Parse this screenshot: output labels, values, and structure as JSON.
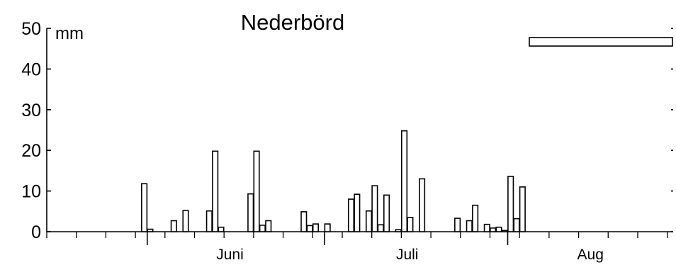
{
  "chart_data": {
    "type": "bar",
    "title": "Nederbörd",
    "ylabel": "mm",
    "ylim": [
      0,
      50
    ],
    "yticks": [
      0,
      10,
      20,
      30,
      40,
      50
    ],
    "y_tick_labels": [
      "0",
      "10",
      "20",
      "30",
      "40",
      "50"
    ],
    "xlim": [
      "2000-05-15",
      "2000-08-29"
    ],
    "month_labels": [
      {
        "label": "Juni",
        "date": "2000-06-15"
      },
      {
        "label": "Juli",
        "date": "2000-07-15"
      },
      {
        "label": "Aug",
        "date": "2000-08-15"
      }
    ],
    "month_boundaries": [
      "2000-06-01",
      "2000-07-01",
      "2000-08-01"
    ],
    "grid": false,
    "legend": {
      "position": "top-right",
      "entries": [
        {
          "label": ""
        }
      ]
    },
    "bars": [
      {
        "date": "2000-05-31",
        "value": 11.8
      },
      {
        "date": "2000-06-01",
        "value": 0.6
      },
      {
        "date": "2000-06-05",
        "value": 2.7
      },
      {
        "date": "2000-06-07",
        "value": 5.2
      },
      {
        "date": "2000-06-11",
        "value": 5.1
      },
      {
        "date": "2000-06-12",
        "value": 19.8
      },
      {
        "date": "2000-06-13",
        "value": 1.1
      },
      {
        "date": "2000-06-18",
        "value": 9.3
      },
      {
        "date": "2000-06-19",
        "value": 19.8
      },
      {
        "date": "2000-06-20",
        "value": 1.6
      },
      {
        "date": "2000-06-21",
        "value": 2.7
      },
      {
        "date": "2000-06-27",
        "value": 4.9
      },
      {
        "date": "2000-06-28",
        "value": 1.5
      },
      {
        "date": "2000-06-29",
        "value": 1.9
      },
      {
        "date": "2000-07-01",
        "value": 1.9
      },
      {
        "date": "2000-07-05",
        "value": 8.0
      },
      {
        "date": "2000-07-06",
        "value": 9.2
      },
      {
        "date": "2000-07-08",
        "value": 5.1
      },
      {
        "date": "2000-07-09",
        "value": 11.3
      },
      {
        "date": "2000-07-10",
        "value": 1.7
      },
      {
        "date": "2000-07-11",
        "value": 9.0
      },
      {
        "date": "2000-07-13",
        "value": 0.5
      },
      {
        "date": "2000-07-14",
        "value": 24.8
      },
      {
        "date": "2000-07-15",
        "value": 3.5
      },
      {
        "date": "2000-07-17",
        "value": 13.0
      },
      {
        "date": "2000-07-23",
        "value": 3.3
      },
      {
        "date": "2000-07-25",
        "value": 2.7
      },
      {
        "date": "2000-07-26",
        "value": 6.5
      },
      {
        "date": "2000-07-28",
        "value": 1.8
      },
      {
        "date": "2000-07-29",
        "value": 0.9
      },
      {
        "date": "2000-07-30",
        "value": 1.1
      },
      {
        "date": "2000-07-31",
        "value": 0.3
      },
      {
        "date": "2000-08-01",
        "value": 13.6
      },
      {
        "date": "2000-08-02",
        "value": 3.2
      },
      {
        "date": "2000-08-03",
        "value": 11.0
      }
    ]
  }
}
